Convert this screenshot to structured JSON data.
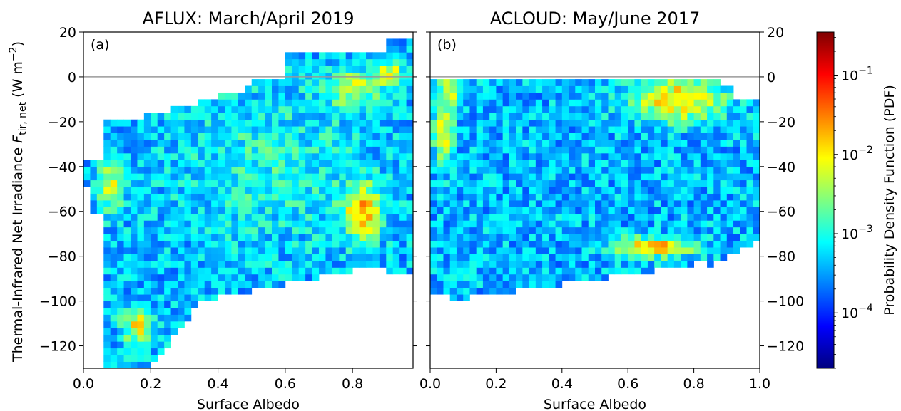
{
  "chart_data": [
    {
      "type": "heatmap",
      "panel_label": "(a)",
      "title": "AFLUX: March/April 2019",
      "xlabel": "Surface Albedo",
      "ylabel_prefix": "Thermal-Infrared Net Irradiance ",
      "ylabel_symbol": "F",
      "ylabel_subscript": "tir, net",
      "ylabel_unit_open": " (W m",
      "ylabel_unit_exp": "−2",
      "ylabel_unit_close": ")",
      "xlim": [
        0.0,
        0.98
      ],
      "ylim": [
        -130,
        20
      ],
      "xticks": [
        "0.0",
        "0.2",
        "0.4",
        "0.6",
        "0.8"
      ],
      "xtick_values": [
        0.0,
        0.2,
        0.4,
        0.6,
        0.8
      ],
      "yticks": [
        "20",
        "0",
        "−20",
        "−40",
        "−60",
        "−80",
        "−100",
        "−120"
      ],
      "ytick_values": [
        20,
        0,
        -20,
        -40,
        -60,
        -80,
        -100,
        -120
      ],
      "reference_line_y": 0,
      "bin_width_x": 0.02,
      "bin_height_y": 3,
      "density_blobs_log10": [
        {
          "x": 0.16,
          "y": -111,
          "sx": 0.03,
          "sy": 6,
          "amp": 1.3
        },
        {
          "x": 0.08,
          "y": -48,
          "sx": 0.03,
          "sy": 8,
          "amp": 1.1
        },
        {
          "x": 0.83,
          "y": -60,
          "sx": 0.04,
          "sy": 9,
          "amp": 1.5
        },
        {
          "x": 0.8,
          "y": -5,
          "sx": 0.06,
          "sy": 6,
          "amp": 1.0
        },
        {
          "x": 0.91,
          "y": 2,
          "sx": 0.03,
          "sy": 4,
          "amp": 1.2
        },
        {
          "x": 0.55,
          "y": -40,
          "sx": 0.2,
          "sy": 25,
          "amp": 0.4
        }
      ]
    },
    {
      "type": "heatmap",
      "panel_label": "(b)",
      "title": "ACLOUD: May/June 2017",
      "xlabel": "Surface Albedo",
      "xlim": [
        0.0,
        1.0
      ],
      "ylim": [
        -130,
        20
      ],
      "xticks": [
        "0.0",
        "0.2",
        "0.4",
        "0.6",
        "0.8",
        "1.0"
      ],
      "xtick_values": [
        0.0,
        0.2,
        0.4,
        0.6,
        0.8,
        1.0
      ],
      "yticks": [
        "20",
        "0",
        "−20",
        "−40",
        "−60",
        "−80",
        "−100",
        "−120"
      ],
      "ytick_values": [
        20,
        0,
        -20,
        -40,
        -60,
        -80,
        -100,
        -120
      ],
      "y_axis_side": "right",
      "reference_line_y": 0,
      "bin_width_x": 0.02,
      "bin_height_y": 3,
      "density_blobs_log10": [
        {
          "x": 0.68,
          "y": -76,
          "sx": 0.08,
          "sy": 3,
          "amp": 1.8
        },
        {
          "x": 0.75,
          "y": -10,
          "sx": 0.1,
          "sy": 7,
          "amp": 1.5
        },
        {
          "x": 0.04,
          "y": -25,
          "sx": 0.02,
          "sy": 10,
          "amp": 1.3
        },
        {
          "x": 0.06,
          "y": -5,
          "sx": 0.03,
          "sy": 5,
          "amp": 1.0
        }
      ]
    }
  ],
  "colorbar": {
    "label": "Probability Density Function (PDF)",
    "scale": "log",
    "range": [
      2e-05,
      0.35
    ],
    "ticks": [
      {
        "base": "10",
        "exp": "−1",
        "value": 0.1
      },
      {
        "base": "10",
        "exp": "−2",
        "value": 0.01
      },
      {
        "base": "10",
        "exp": "−3",
        "value": 0.001
      },
      {
        "base": "10",
        "exp": "−4",
        "value": 0.0001
      }
    ],
    "colormap": "jet"
  },
  "colors": {
    "reference_line": "#999999",
    "axis": "#000000"
  }
}
